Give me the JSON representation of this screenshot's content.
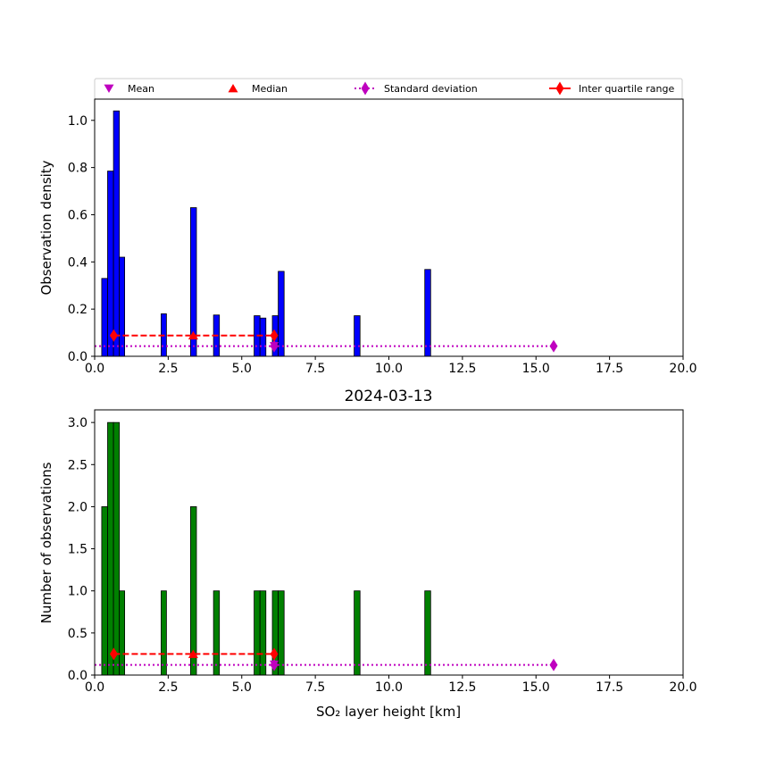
{
  "legend": {
    "items": [
      {
        "label": "Mean",
        "marker": "triangle-down",
        "color": "#bf00bf"
      },
      {
        "label": "Median",
        "marker": "triangle-up",
        "color": "#ff0000"
      },
      {
        "label": "Standard deviation",
        "marker": "diamond",
        "line": "dotted",
        "color": "#bf00bf"
      },
      {
        "label": "Inter quartile range",
        "marker": "diamond",
        "line": "solid",
        "color": "#ff0000"
      }
    ]
  },
  "chart_data": [
    {
      "type": "bar",
      "title": "",
      "xlabel": "",
      "ylabel": "Observation density",
      "xlim": [
        0,
        20
      ],
      "ylim": [
        0,
        1.09
      ],
      "xticks": [
        "0.0",
        "2.5",
        "5.0",
        "7.5",
        "10.0",
        "12.5",
        "15.0",
        "17.5",
        "20.0"
      ],
      "yticks": [
        "0.0",
        "0.2",
        "0.4",
        "0.6",
        "0.8",
        "1.0"
      ],
      "bar_color": "#0000ff",
      "bins": [
        {
          "x0": 0.24,
          "x1": 0.44,
          "value": 0.33
        },
        {
          "x0": 0.44,
          "x1": 0.64,
          "value": 0.785
        },
        {
          "x0": 0.64,
          "x1": 0.84,
          "value": 1.04
        },
        {
          "x0": 0.84,
          "x1": 1.02,
          "value": 0.42
        },
        {
          "x0": 2.26,
          "x1": 2.44,
          "value": 0.18
        },
        {
          "x0": 3.26,
          "x1": 3.46,
          "value": 0.63
        },
        {
          "x0": 4.04,
          "x1": 4.24,
          "value": 0.175
        },
        {
          "x0": 5.42,
          "x1": 5.62,
          "value": 0.172
        },
        {
          "x0": 5.62,
          "x1": 5.82,
          "value": 0.162
        },
        {
          "x0": 6.04,
          "x1": 6.24,
          "value": 0.172
        },
        {
          "x0": 6.24,
          "x1": 6.44,
          "value": 0.36
        },
        {
          "x0": 8.82,
          "x1": 9.02,
          "value": 0.172
        },
        {
          "x0": 11.22,
          "x1": 11.42,
          "value": 0.368
        }
      ],
      "stats": {
        "mean": 6.1,
        "median": 3.35,
        "std_range": [
          0.0,
          15.6
        ],
        "iqr_range": [
          0.65,
          6.1
        ],
        "mean_y": 0.045,
        "median_y": 0.088,
        "std_y": 0.043,
        "iqr_y": 0.088
      }
    },
    {
      "type": "bar",
      "title": "2024-03-13",
      "xlabel": "SO₂ layer height [km]",
      "ylabel": "Number of observations",
      "xlim": [
        0,
        20
      ],
      "ylim": [
        0,
        3.15
      ],
      "xticks": [
        "0.0",
        "2.5",
        "5.0",
        "7.5",
        "10.0",
        "12.5",
        "15.0",
        "17.5",
        "20.0"
      ],
      "yticks": [
        "0.0",
        "0.5",
        "1.0",
        "1.5",
        "2.0",
        "2.5",
        "3.0"
      ],
      "bar_color": "#008000",
      "bins": [
        {
          "x0": 0.24,
          "x1": 0.44,
          "value": 2
        },
        {
          "x0": 0.44,
          "x1": 0.64,
          "value": 3
        },
        {
          "x0": 0.64,
          "x1": 0.84,
          "value": 3
        },
        {
          "x0": 0.84,
          "x1": 1.02,
          "value": 1
        },
        {
          "x0": 2.26,
          "x1": 2.44,
          "value": 1
        },
        {
          "x0": 3.26,
          "x1": 3.46,
          "value": 2
        },
        {
          "x0": 4.04,
          "x1": 4.24,
          "value": 1
        },
        {
          "x0": 5.42,
          "x1": 5.62,
          "value": 1
        },
        {
          "x0": 5.62,
          "x1": 5.82,
          "value": 1
        },
        {
          "x0": 6.04,
          "x1": 6.24,
          "value": 1
        },
        {
          "x0": 6.24,
          "x1": 6.44,
          "value": 1
        },
        {
          "x0": 8.82,
          "x1": 9.02,
          "value": 1
        },
        {
          "x0": 11.22,
          "x1": 11.42,
          "value": 1
        }
      ],
      "stats": {
        "mean": 6.1,
        "median": 3.35,
        "std_range": [
          0.0,
          15.6
        ],
        "iqr_range": [
          0.65,
          6.1
        ],
        "mean_y": 0.13,
        "median_y": 0.25,
        "std_y": 0.12,
        "iqr_y": 0.25
      }
    }
  ]
}
